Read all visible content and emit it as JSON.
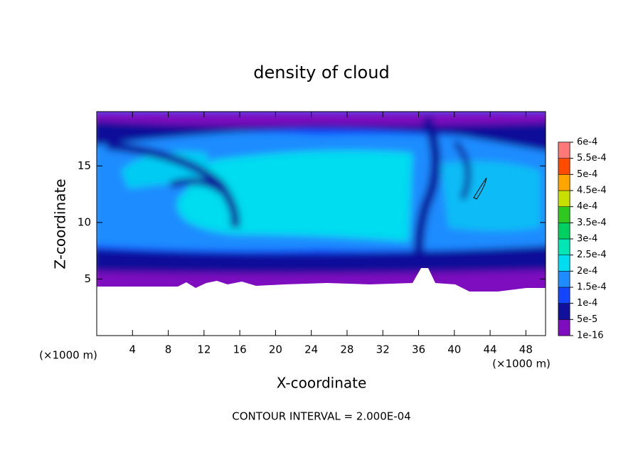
{
  "chart_data": {
    "type": "contour",
    "title": "density of cloud",
    "xlabel": "X-coordinate",
    "ylabel": "Z-coordinate",
    "xunit": "(×1000 m)",
    "yunit": "(×1000 m)",
    "annotation": "CONTOUR INTERVAL = 2.000E-04",
    "xlim": [
      0,
      50.2
    ],
    "xticks": [
      4,
      8,
      12,
      16,
      20,
      24,
      28,
      32,
      36,
      40,
      44,
      48
    ],
    "ylim": [
      0,
      19.8
    ],
    "yticks": [
      5,
      10,
      15
    ],
    "colorbar": {
      "ticks": [
        {
          "value": 1e-16,
          "label": "1e-16"
        },
        {
          "value": 5e-05,
          "label": "5e-5"
        },
        {
          "value": 0.0001,
          "label": "1e-4"
        },
        {
          "value": 0.00015,
          "label": "1.5e-4"
        },
        {
          "value": 0.0002,
          "label": "2e-4"
        },
        {
          "value": 0.00025,
          "label": "2.5e-4"
        },
        {
          "value": 0.0003,
          "label": "3e-4"
        },
        {
          "value": 0.00035,
          "label": "3.5e-4"
        },
        {
          "value": 0.0004,
          "label": "4e-4"
        },
        {
          "value": 0.00045,
          "label": "4.5e-4"
        },
        {
          "value": 0.0005,
          "label": "5e-4"
        },
        {
          "value": 0.00055,
          "label": "5.5e-4"
        },
        {
          "value": 0.0006,
          "label": "6e-4"
        }
      ],
      "colors": [
        "#7d0dbf",
        "#10109a",
        "#1446ff",
        "#1e8cff",
        "#00dcf0",
        "#00e6b4",
        "#00d060",
        "#2ec81e",
        "#c8e000",
        "#ffa500",
        "#ff4b00",
        "#ff7878"
      ]
    }
  }
}
